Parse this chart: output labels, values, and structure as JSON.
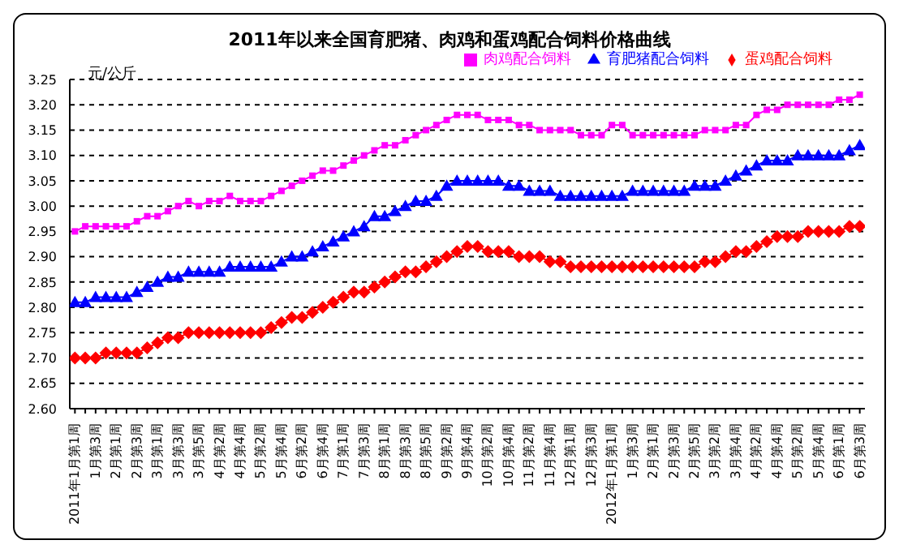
{
  "chart_data": {
    "type": "line",
    "title": "2011年以来全国育肥猪、肉鸡和蛋鸡配合饲料价格曲线",
    "ylabel": "元/公斤",
    "categories": [
      "2011年1月第1周",
      null,
      "1月第3周",
      null,
      "2月第1周",
      null,
      "2月第3周",
      null,
      "3月第1周",
      null,
      "3月第3周",
      null,
      "3月第5周",
      null,
      "4月第2周",
      null,
      "4月第4周",
      null,
      "5月第2周",
      null,
      "5月第4周",
      null,
      "6月第2周",
      null,
      "6月第4周",
      null,
      "7月第1周",
      null,
      "7月第3周",
      null,
      "8月第1周",
      null,
      "8月第3周",
      null,
      "8月第5周",
      null,
      "9月第2周",
      null,
      "9月第4周",
      null,
      "10月第2周",
      null,
      "10月第4周",
      null,
      "11月第2周",
      null,
      "11月第4周",
      null,
      "12月第1周",
      null,
      "12月第3周",
      null,
      "2012年1月第1周",
      null,
      "1月第3周",
      null,
      "2月第1周",
      null,
      "2月第3周",
      null,
      "2月第5周",
      null,
      "3月第2周",
      null,
      "3月第4周",
      null,
      "4月第2周",
      null,
      "4月第4周",
      null,
      "5月第2周",
      null,
      "5月第4周",
      null,
      "6月第1周",
      null,
      "6月第3周"
    ],
    "series": [
      {
        "name": "育肥猪配合饲料",
        "color": "#0000ff",
        "marker": "triangle",
        "values": [
          2.81,
          2.81,
          2.82,
          2.82,
          2.82,
          2.82,
          2.83,
          2.84,
          2.85,
          2.86,
          2.86,
          2.87,
          2.87,
          2.87,
          2.87,
          2.88,
          2.88,
          2.88,
          2.88,
          2.88,
          2.89,
          2.9,
          2.9,
          2.91,
          2.92,
          2.93,
          2.94,
          2.95,
          2.96,
          2.98,
          2.98,
          2.99,
          3.0,
          3.01,
          3.01,
          3.02,
          3.04,
          3.05,
          3.05,
          3.05,
          3.05,
          3.05,
          3.04,
          3.04,
          3.03,
          3.03,
          3.03,
          3.02,
          3.02,
          3.02,
          3.02,
          3.02,
          3.02,
          3.02,
          3.03,
          3.03,
          3.03,
          3.03,
          3.03,
          3.03,
          3.04,
          3.04,
          3.04,
          3.05,
          3.06,
          3.07,
          3.08,
          3.09,
          3.09,
          3.09,
          3.1,
          3.1,
          3.1,
          3.1,
          3.1,
          3.11,
          3.12
        ]
      },
      {
        "name": "肉鸡配合饲料",
        "color": "#ff00ff",
        "marker": "square",
        "values": [
          2.95,
          2.96,
          2.96,
          2.96,
          2.96,
          2.96,
          2.97,
          2.98,
          2.98,
          2.99,
          3.0,
          3.01,
          3.0,
          3.01,
          3.01,
          3.02,
          3.01,
          3.01,
          3.01,
          3.02,
          3.03,
          3.04,
          3.05,
          3.06,
          3.07,
          3.07,
          3.08,
          3.09,
          3.1,
          3.11,
          3.12,
          3.12,
          3.13,
          3.14,
          3.15,
          3.16,
          3.17,
          3.18,
          3.18,
          3.18,
          3.17,
          3.17,
          3.17,
          3.16,
          3.16,
          3.15,
          3.15,
          3.15,
          3.15,
          3.14,
          3.14,
          3.14,
          3.16,
          3.16,
          3.14,
          3.14,
          3.14,
          3.14,
          3.14,
          3.14,
          3.14,
          3.15,
          3.15,
          3.15,
          3.16,
          3.16,
          3.18,
          3.19,
          3.19,
          3.2,
          3.2,
          3.2,
          3.2,
          3.2,
          3.21,
          3.21,
          3.22
        ]
      },
      {
        "name": "蛋鸡配合饲料",
        "color": "#ff0000",
        "marker": "diamond",
        "values": [
          2.7,
          2.7,
          2.7,
          2.71,
          2.71,
          2.71,
          2.71,
          2.72,
          2.73,
          2.74,
          2.74,
          2.75,
          2.75,
          2.75,
          2.75,
          2.75,
          2.75,
          2.75,
          2.75,
          2.76,
          2.77,
          2.78,
          2.78,
          2.79,
          2.8,
          2.81,
          2.82,
          2.83,
          2.83,
          2.84,
          2.85,
          2.86,
          2.87,
          2.87,
          2.88,
          2.89,
          2.9,
          2.91,
          2.92,
          2.92,
          2.91,
          2.91,
          2.91,
          2.9,
          2.9,
          2.9,
          2.89,
          2.89,
          2.88,
          2.88,
          2.88,
          2.88,
          2.88,
          2.88,
          2.88,
          2.88,
          2.88,
          2.88,
          2.88,
          2.88,
          2.88,
          2.89,
          2.89,
          2.9,
          2.91,
          2.91,
          2.92,
          2.93,
          2.94,
          2.94,
          2.94,
          2.95,
          2.95,
          2.95,
          2.95,
          2.96,
          2.96
        ]
      }
    ],
    "ylim": [
      2.6,
      3.25
    ],
    "yticks": [
      {
        "value": 2.6,
        "label": "2.60"
      },
      {
        "value": 2.65,
        "label": "2.65"
      },
      {
        "value": 2.7,
        "label": "2.70"
      },
      {
        "value": 2.75,
        "label": "2.75"
      },
      {
        "value": 2.8,
        "label": "2.80"
      },
      {
        "value": 2.85,
        "label": "2.85"
      },
      {
        "value": 2.9,
        "label": "2.90"
      },
      {
        "value": 2.95,
        "label": "2.95"
      },
      {
        "value": 3.0,
        "label": "3.00"
      },
      {
        "value": 3.05,
        "label": "3.05"
      },
      {
        "value": 3.1,
        "label": "3.10"
      },
      {
        "value": 3.15,
        "label": "3.15"
      },
      {
        "value": 3.2,
        "label": "3.20"
      },
      {
        "value": 3.25,
        "label": "3.25"
      }
    ],
    "grid": "y",
    "legend": "top right",
    "line_style": "solid"
  }
}
